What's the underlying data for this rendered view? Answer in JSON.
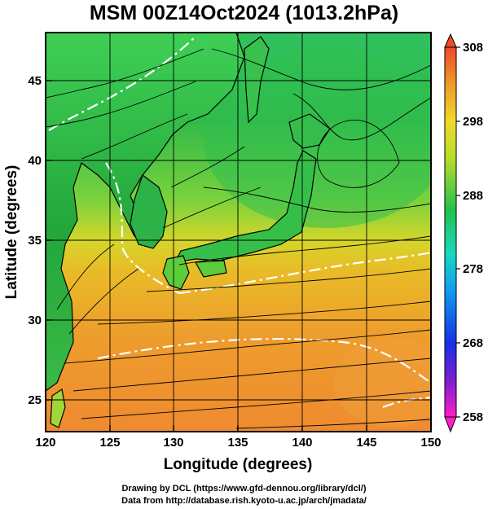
{
  "title": "MSM 00Z14Oct2024 (1013.2hPa)",
  "xlabel": "Longitude (degrees)",
  "ylabel": "Latitude  (degrees)",
  "x_ticks": [
    "120",
    "125",
    "130",
    "135",
    "140",
    "145",
    "150"
  ],
  "y_ticks": [
    "25",
    "30",
    "35",
    "40",
    "45"
  ],
  "colorbar": {
    "ticks": [
      "308",
      "298",
      "288",
      "278",
      "268",
      "258"
    ],
    "min": 258,
    "max": 308
  },
  "credits": {
    "line1": "Drawing by DCL (https://www.gfd-dennou.org/library/dcl/)",
    "line2": "Data from http://database.rish.kyoto-u.ac.jp/arch/jmadata/"
  },
  "chart_data": {
    "type": "heatmap",
    "xlim": [
      120,
      150
    ],
    "ylim": [
      22.5,
      47.5
    ],
    "colorbar_range": [
      258,
      308
    ],
    "grid": true
  }
}
